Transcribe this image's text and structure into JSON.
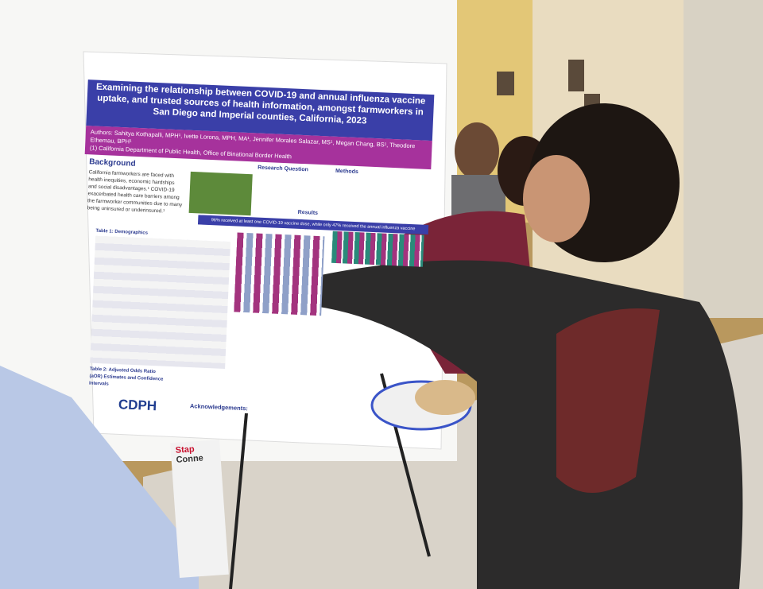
{
  "poster": {
    "title": "Examining the relationship between COVID-19 and annual influenza vaccine uptake, and trusted sources of health information, amongst farmworkers in San Diego and Imperial counties, California, 2023",
    "authors": "Authors: Sahitya Kothapalli, MPH¹, Ivette Lorona, MPH, MA¹, Jennifer Morales Salazar, MS¹, Megan Chang, BS¹, Theodore Ethemau, BPH¹",
    "affiliation": "(1) California Department of Public Health, Office of Binational Border Health",
    "sections": [
      "Background",
      "Research Question",
      "Methods",
      "Results"
    ],
    "background_text": "California farmworkers are faced with health inequities, economic hardships and social disadvantages.¹ COVID-19 exacerbated health care barriers among the farmworker communities due to many being uninsured or underinsured.¹",
    "results_banner": "96% received at least one COVID-19 vaccine dose, while only 47% received the annual influenza vaccine",
    "table1_title": "Table 1: Demographics",
    "table2_title": "Table 2: Adjusted Odds Ratio (aOR) Estimates and Confidence Intervals",
    "acknowledgements": "Acknowledgements:",
    "logo": "CDPH"
  },
  "bag_text": [
    "Stap",
    "Conne"
  ]
}
